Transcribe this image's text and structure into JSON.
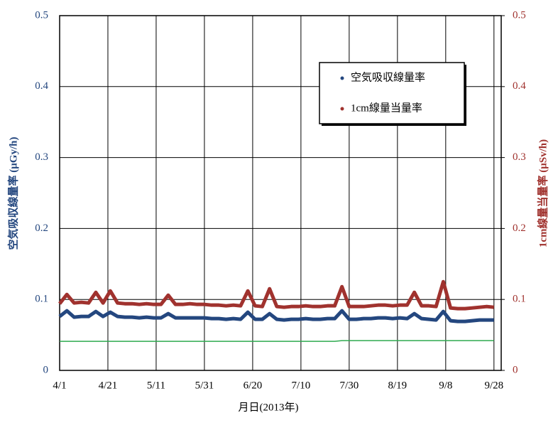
{
  "chart_data": {
    "type": "line",
    "xlabel": "月日(2013年)",
    "ylabel": "空気吸収線量率 (μGy/h)",
    "y2label": "1cm線量当量率 (μSv/h)",
    "x": [
      "4/1",
      "4/4",
      "4/7",
      "4/10",
      "4/13",
      "4/16",
      "4/19",
      "4/22",
      "4/25",
      "4/28",
      "5/1",
      "5/4",
      "5/7",
      "5/10",
      "5/13",
      "5/16",
      "5/19",
      "5/22",
      "5/25",
      "5/28",
      "5/31",
      "6/3",
      "6/6",
      "6/9",
      "6/12",
      "6/15",
      "6/18",
      "6/21",
      "6/24",
      "6/27",
      "6/30",
      "7/3",
      "7/6",
      "7/9",
      "7/12",
      "7/15",
      "7/18",
      "7/21",
      "7/24",
      "7/27",
      "7/30",
      "8/2",
      "8/5",
      "8/8",
      "8/11",
      "8/14",
      "8/17",
      "8/20",
      "8/23",
      "8/26",
      "8/29",
      "9/1",
      "9/4",
      "9/7",
      "9/10",
      "9/13",
      "9/16",
      "9/19",
      "9/22",
      "9/25",
      "9/28"
    ],
    "xlim": [
      "4/1",
      "10/1"
    ],
    "xticks": [
      "4/1",
      "4/21",
      "5/11",
      "5/31",
      "6/20",
      "7/10",
      "7/30",
      "8/19",
      "9/8",
      "9/28"
    ],
    "ylim": [
      0,
      0.5
    ],
    "yticks": [
      0,
      0.1,
      0.2,
      0.3,
      0.4,
      0.5
    ],
    "y2lim": [
      0,
      0.5
    ],
    "y2ticks": [
      0,
      0.1,
      0.2,
      0.3,
      0.4,
      0.5
    ],
    "grid": true,
    "legend": "upper right",
    "series": [
      {
        "name": "空気吸収線量率",
        "color": "#24477f",
        "values": [
          0.076,
          0.084,
          0.075,
          0.076,
          0.076,
          0.083,
          0.076,
          0.082,
          0.076,
          0.075,
          0.075,
          0.074,
          0.075,
          0.074,
          0.074,
          0.08,
          0.074,
          0.074,
          0.074,
          0.074,
          0.074,
          0.073,
          0.073,
          0.072,
          0.073,
          0.072,
          0.082,
          0.072,
          0.072,
          0.08,
          0.072,
          0.071,
          0.072,
          0.072,
          0.073,
          0.072,
          0.072,
          0.073,
          0.073,
          0.084,
          0.072,
          0.072,
          0.073,
          0.073,
          0.074,
          0.074,
          0.073,
          0.074,
          0.073,
          0.08,
          0.073,
          0.072,
          0.071,
          0.083,
          0.07,
          0.069,
          0.069,
          0.07,
          0.071,
          0.071,
          0.071
        ]
      },
      {
        "name": "1cm線量当量率",
        "color": "#a0322e",
        "axis": "y2",
        "values": [
          0.094,
          0.107,
          0.095,
          0.096,
          0.095,
          0.11,
          0.095,
          0.112,
          0.095,
          0.094,
          0.094,
          0.093,
          0.094,
          0.093,
          0.093,
          0.106,
          0.093,
          0.093,
          0.094,
          0.093,
          0.093,
          0.092,
          0.092,
          0.091,
          0.092,
          0.091,
          0.112,
          0.091,
          0.09,
          0.115,
          0.09,
          0.089,
          0.09,
          0.09,
          0.091,
          0.09,
          0.09,
          0.091,
          0.091,
          0.118,
          0.09,
          0.09,
          0.09,
          0.091,
          0.092,
          0.092,
          0.091,
          0.092,
          0.092,
          0.11,
          0.091,
          0.091,
          0.09,
          0.125,
          0.088,
          0.087,
          0.087,
          0.088,
          0.089,
          0.09,
          0.089
        ]
      },
      {
        "color": "#2eaa4f",
        "values": [
          0.041,
          0.041,
          0.041,
          0.041,
          0.041,
          0.041,
          0.041,
          0.041,
          0.041,
          0.041,
          0.041,
          0.041,
          0.041,
          0.041,
          0.041,
          0.041,
          0.041,
          0.041,
          0.041,
          0.041,
          0.041,
          0.041,
          0.041,
          0.041,
          0.041,
          0.041,
          0.041,
          0.041,
          0.041,
          0.041,
          0.041,
          0.041,
          0.041,
          0.041,
          0.041,
          0.041,
          0.041,
          0.041,
          0.041,
          0.042,
          0.042,
          0.042,
          0.042,
          0.042,
          0.042,
          0.042,
          0.042,
          0.042,
          0.042,
          0.042,
          0.042,
          0.042,
          0.042,
          0.042,
          0.042,
          0.042,
          0.042,
          0.042,
          0.042,
          0.042,
          0.042
        ]
      }
    ]
  }
}
